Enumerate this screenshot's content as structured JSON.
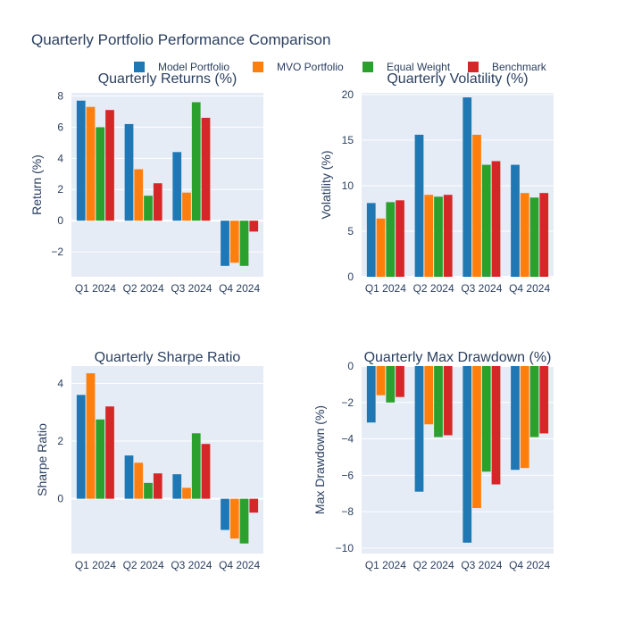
{
  "figure": {
    "title": "Quarterly Portfolio Performance Comparison",
    "legend_placement": "top-center",
    "background": "#ffffff",
    "plot_background": "#e5ecf6",
    "grid": true
  },
  "legend": [
    {
      "name": "Model Portfolio",
      "color": "#1f77b4"
    },
    {
      "name": "MVO Portfolio",
      "color": "#ff7f0e"
    },
    {
      "name": "Equal Weight",
      "color": "#2ca02c"
    },
    {
      "name": "Benchmark",
      "color": "#d62728"
    }
  ],
  "chart_data": [
    {
      "type": "bar",
      "title": "Quarterly Returns (%)",
      "xlabel": "",
      "ylabel": "Return (%)",
      "categories": [
        "Q1 2024",
        "Q2 2024",
        "Q3 2024",
        "Q4 2024"
      ],
      "ylim": [
        -3.6,
        8.2
      ],
      "yticks": [
        -2,
        0,
        2,
        4,
        6,
        8
      ],
      "series": [
        {
          "name": "Model Portfolio",
          "color": "#1f77b4",
          "values": [
            7.7,
            6.2,
            4.4,
            -2.9
          ]
        },
        {
          "name": "MVO Portfolio",
          "color": "#ff7f0e",
          "values": [
            7.3,
            3.3,
            1.8,
            -2.7
          ]
        },
        {
          "name": "Equal Weight",
          "color": "#2ca02c",
          "values": [
            6.0,
            1.6,
            7.6,
            -2.9
          ]
        },
        {
          "name": "Benchmark",
          "color": "#d62728",
          "values": [
            7.1,
            2.4,
            6.6,
            -0.7
          ]
        }
      ]
    },
    {
      "type": "bar",
      "title": "Quarterly Volatility (%)",
      "xlabel": "",
      "ylabel": "Volatility (%)",
      "categories": [
        "Q1 2024",
        "Q2 2024",
        "Q3 2024",
        "Q4 2024"
      ],
      "ylim": [
        0,
        20.2
      ],
      "yticks": [
        0,
        5,
        10,
        15,
        20
      ],
      "series": [
        {
          "name": "Model Portfolio",
          "color": "#1f77b4",
          "values": [
            8.1,
            15.6,
            19.7,
            12.3
          ]
        },
        {
          "name": "MVO Portfolio",
          "color": "#ff7f0e",
          "values": [
            6.4,
            9.0,
            15.6,
            9.2
          ]
        },
        {
          "name": "Equal Weight",
          "color": "#2ca02c",
          "values": [
            8.2,
            8.8,
            12.3,
            8.7
          ]
        },
        {
          "name": "Benchmark",
          "color": "#d62728",
          "values": [
            8.4,
            9.0,
            12.7,
            9.2
          ]
        }
      ]
    },
    {
      "type": "bar",
      "title": "Quarterly Sharpe Ratio",
      "xlabel": "",
      "ylabel": "Sharpe Ratio",
      "categories": [
        "Q1 2024",
        "Q2 2024",
        "Q3 2024",
        "Q4 2024"
      ],
      "ylim": [
        -1.9,
        4.6
      ],
      "yticks": [
        0,
        2,
        4
      ],
      "series": [
        {
          "name": "Model Portfolio",
          "color": "#1f77b4",
          "values": [
            3.6,
            1.5,
            0.85,
            -1.08
          ]
        },
        {
          "name": "MVO Portfolio",
          "color": "#ff7f0e",
          "values": [
            4.35,
            1.25,
            0.38,
            -1.38
          ]
        },
        {
          "name": "Equal Weight",
          "color": "#2ca02c",
          "values": [
            2.75,
            0.55,
            2.27,
            -1.55
          ]
        },
        {
          "name": "Benchmark",
          "color": "#d62728",
          "values": [
            3.2,
            0.88,
            1.9,
            -0.48
          ]
        }
      ]
    },
    {
      "type": "bar",
      "title": "Quarterly Max Drawdown (%)",
      "xlabel": "",
      "ylabel": "Max Drawdown (%)",
      "categories": [
        "Q1 2024",
        "Q2 2024",
        "Q3 2024",
        "Q4 2024"
      ],
      "ylim": [
        -10.3,
        0
      ],
      "yticks": [
        -10,
        -8,
        -6,
        -4,
        -2,
        0
      ],
      "series": [
        {
          "name": "Model Portfolio",
          "color": "#1f77b4",
          "values": [
            -3.1,
            -6.9,
            -9.7,
            -5.7
          ]
        },
        {
          "name": "MVO Portfolio",
          "color": "#ff7f0e",
          "values": [
            -1.6,
            -3.2,
            -7.8,
            -5.6
          ]
        },
        {
          "name": "Equal Weight",
          "color": "#2ca02c",
          "values": [
            -2.0,
            -3.9,
            -5.8,
            -3.9
          ]
        },
        {
          "name": "Benchmark",
          "color": "#d62728",
          "values": [
            -1.7,
            -3.8,
            -6.5,
            -3.7
          ]
        }
      ]
    }
  ]
}
